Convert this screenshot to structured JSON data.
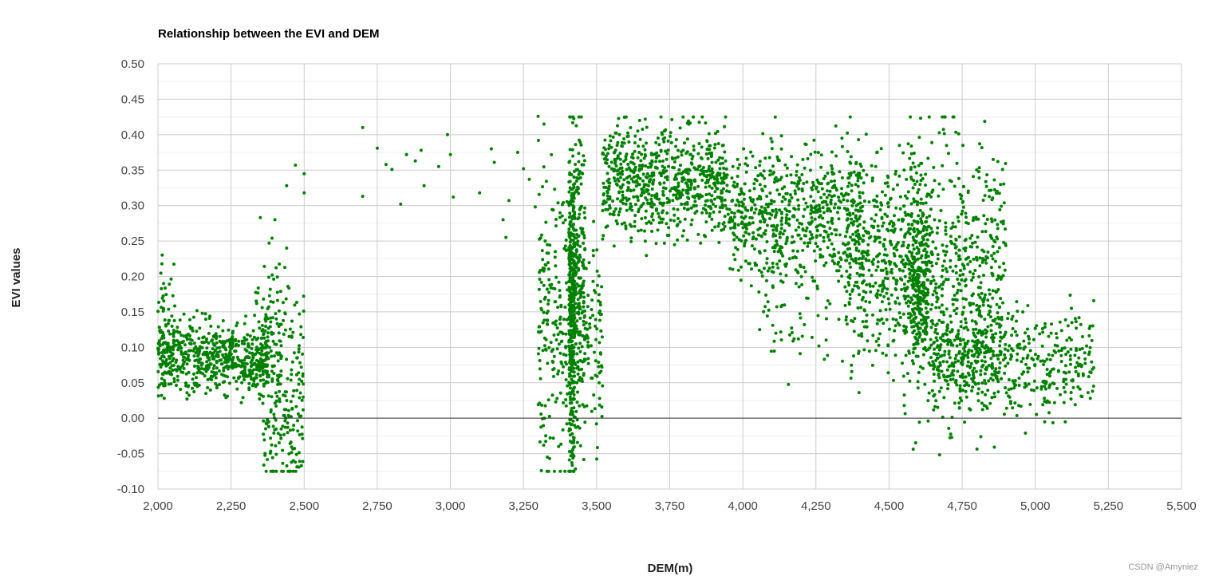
{
  "chart_data": {
    "type": "scatter",
    "title": "Relationship between the EVI and DEM",
    "xlabel": "DEM(m)",
    "ylabel": "EVI values",
    "xlim": [
      2000,
      5500
    ],
    "ylim": [
      -0.1,
      0.5
    ],
    "x_ticks": [
      "2,000",
      "2,250",
      "2,500",
      "2,750",
      "3,000",
      "3,250",
      "3,500",
      "3,750",
      "4,000",
      "4,250",
      "4,500",
      "4,750",
      "5,000",
      "5,250",
      "5,500"
    ],
    "y_ticks": [
      "0.50",
      "0.45",
      "0.40",
      "0.35",
      "0.30",
      "0.25",
      "0.20",
      "0.15",
      "0.10",
      "0.05",
      "0.00",
      "-0.05",
      "-0.10"
    ],
    "grid": true,
    "marker_color": "#008000",
    "series": [
      {
        "points": [
          [
            2700,
            0.41
          ],
          [
            2750,
            0.381
          ],
          [
            2800,
            0.351
          ],
          [
            2780,
            0.358
          ],
          [
            2830,
            0.302
          ],
          [
            2850,
            0.372
          ],
          [
            2880,
            0.363
          ],
          [
            2900,
            0.378
          ],
          [
            2910,
            0.328
          ],
          [
            2960,
            0.355
          ],
          [
            3000,
            0.372
          ],
          [
            2990,
            0.4
          ],
          [
            3010,
            0.312
          ],
          [
            2700,
            0.313
          ],
          [
            3100,
            0.318
          ],
          [
            3150,
            0.361
          ],
          [
            3180,
            0.28
          ],
          [
            3200,
            0.307
          ],
          [
            3250,
            0.352
          ],
          [
            3290,
            0.298
          ],
          [
            3300,
            0.426
          ],
          [
            3140,
            0.38
          ],
          [
            3190,
            0.255
          ],
          [
            3230,
            0.375
          ],
          [
            3270,
            0.337
          ],
          [
            3320,
            0.415
          ],
          [
            2440,
            0.328
          ],
          [
            2470,
            0.357
          ],
          [
            2500,
            0.345
          ],
          [
            2500,
            0.318
          ],
          [
            2350,
            0.283
          ],
          [
            2400,
            0.28
          ],
          [
            2390,
            0.254
          ],
          [
            2380,
            0.247
          ],
          [
            2440,
            0.24
          ]
        ]
      }
    ],
    "clusters": [
      {
        "x": [
          2000,
          2380
        ],
        "y_mean": 0.085,
        "y_sd": 0.025,
        "n": 620
      },
      {
        "x": [
          2000,
          2060
        ],
        "y_mean": 0.13,
        "y_sd": 0.045,
        "n": 60
      },
      {
        "x": [
          2360,
          2500
        ],
        "y_mean": 0.04,
        "y_sd": 0.07,
        "n": 230
      },
      {
        "x": [
          2330,
          2420
        ],
        "y_mean": 0.14,
        "y_sd": 0.05,
        "n": 40
      },
      {
        "x": [
          3300,
          3400
        ],
        "y_mean": 0.14,
        "y_sd": 0.11,
        "n": 190
      },
      {
        "x": [
          3405,
          3425
        ],
        "y_mean": 0.15,
        "y_sd": 0.11,
        "n": 380
      },
      {
        "x": [
          3420,
          3460
        ],
        "y_mean": 0.19,
        "y_sd": 0.1,
        "n": 240
      },
      {
        "x": [
          3460,
          3520
        ],
        "y_mean": 0.12,
        "y_sd": 0.07,
        "n": 80
      },
      {
        "x": [
          3520,
          3950
        ],
        "y_mean": 0.335,
        "y_sd": 0.04,
        "n": 720
      },
      {
        "x": [
          3950,
          4400
        ],
        "y_mean": 0.29,
        "y_sd": 0.045,
        "n": 620
      },
      {
        "x": [
          4050,
          4350
        ],
        "y_mean": 0.15,
        "y_sd": 0.05,
        "n": 60
      },
      {
        "x": [
          4350,
          4650
        ],
        "y_mean": 0.23,
        "y_sd": 0.07,
        "n": 560
      },
      {
        "x": [
          4580,
          4630
        ],
        "y_mean": 0.17,
        "y_sd": 0.05,
        "n": 120
      },
      {
        "x": [
          4550,
          4900
        ],
        "y_mean": 0.2,
        "y_sd": 0.1,
        "n": 620
      },
      {
        "x": [
          4650,
          4900
        ],
        "y_mean": 0.08,
        "y_sd": 0.03,
        "n": 260
      },
      {
        "x": [
          4900,
          5200
        ],
        "y_mean": 0.08,
        "y_sd": 0.04,
        "n": 240
      }
    ]
  },
  "watermark": "CSDN @Amyniez"
}
